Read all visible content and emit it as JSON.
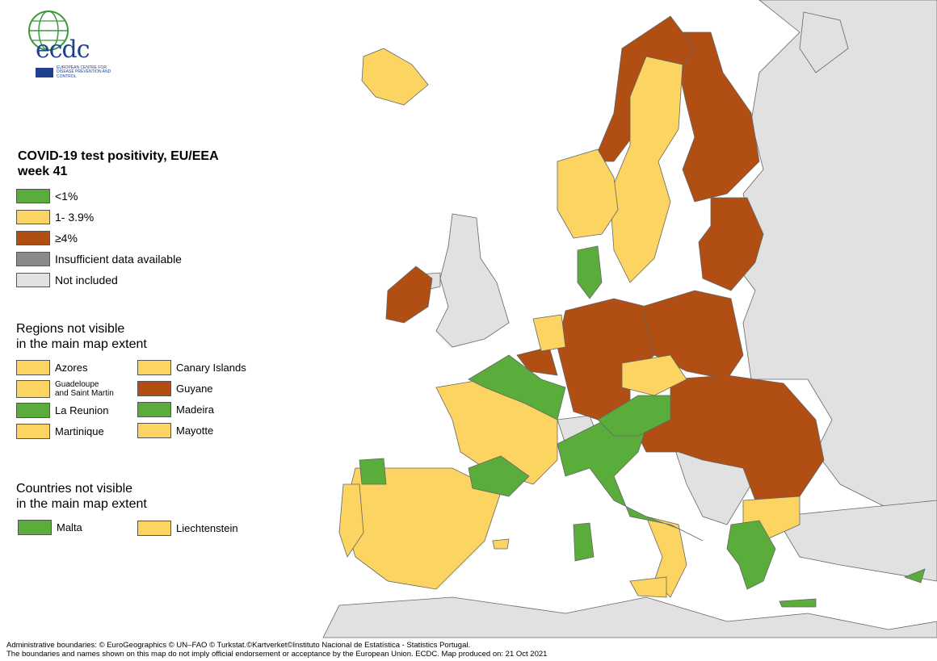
{
  "logo": {
    "text": "ecdc",
    "subtitle": "EUROPEAN CENTRE FOR DISEASE PREVENTION AND CONTROL"
  },
  "legend": {
    "title_line1": "COVID-19 test positivity, EU/EEA",
    "title_line2": "week 41",
    "items": [
      {
        "label": "<1%",
        "color": "#5aad3a"
      },
      {
        "label": "1- 3.9%",
        "color": "#fbd462"
      },
      {
        "label": "≥4%",
        "color": "#b04e13"
      },
      {
        "label": "Insufficient data available",
        "color": "#8a8a8a"
      },
      {
        "label": "Not included",
        "color": "#e1e1e1"
      }
    ]
  },
  "regions_section": {
    "title_line1": "Regions not visible",
    "title_line2": "in the main map extent",
    "items": [
      {
        "label": "Azores",
        "color": "#fbd462"
      },
      {
        "label": "Canary Islands",
        "color": "#fbd462"
      },
      {
        "label": "Guadeloupe",
        "label2": "and Saint Martin",
        "color": "#fbd462"
      },
      {
        "label": "Guyane",
        "color": "#b04e13"
      },
      {
        "label": "La Reunion",
        "color": "#5aad3a"
      },
      {
        "label": "Madeira",
        "color": "#5aad3a"
      },
      {
        "label": "Martinique",
        "color": "#fbd462"
      },
      {
        "label": "Mayotte",
        "color": "#fbd462"
      }
    ]
  },
  "countries_section": {
    "title_line1": "Countries not visible",
    "title_line2": "in the main map extent",
    "items": [
      {
        "label": "Malta",
        "color": "#5aad3a"
      },
      {
        "label": "Liechtenstein",
        "color": "#fbd462"
      }
    ]
  },
  "footer": {
    "line1": "Administrative boundaries: © EuroGeographics © UN–FAO © Turkstat.©Kartverket©Instituto Nacional de Estatística - Statistics Portugal.",
    "line2": "The boundaries and names shown on this map do not imply official endorsement or acceptance by the European Union. ECDC. Map produced on: 21 Oct 2021"
  }
}
